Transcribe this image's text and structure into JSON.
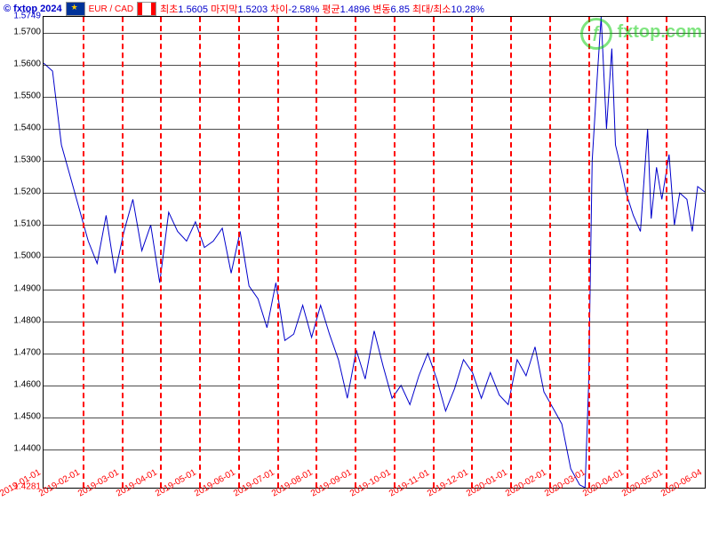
{
  "header": {
    "copyright": "© fxtop 2024",
    "pair": "EUR / CAD",
    "stats": [
      {
        "label": "최초",
        "value": "1.5605"
      },
      {
        "label": "마지막",
        "value": "1.5203"
      },
      {
        "label": "차이",
        "value": "-2.58%"
      },
      {
        "label": "평균",
        "value": "1.4896"
      },
      {
        "label": "변동",
        "value": "6.85"
      },
      {
        "label": "최대/최소",
        "value": "10.28%"
      }
    ],
    "watermark": "fxtop.com"
  },
  "chart": {
    "type": "line",
    "background_color": "#ffffff",
    "grid_color": "#000000",
    "vgrid_color": "#ff0000",
    "line_color": "#0000cc",
    "line_width": 1,
    "ymax": 1.5749,
    "ymin": 1.4281,
    "ymax_color": "#0000cc",
    "ymin_color": "#ff0000",
    "yticks": [
      "1.5700",
      "1.5600",
      "1.5500",
      "1.5400",
      "1.5300",
      "1.5200",
      "1.5100",
      "1.5000",
      "1.4900",
      "1.4800",
      "1.4700",
      "1.4600",
      "1.4500",
      "1.4400"
    ],
    "xticks": [
      "2019-01-01",
      "2019-02-01",
      "2019-03-01",
      "2019-04-01",
      "2019-05-01",
      "2019-06-01",
      "2019-07-01",
      "2019-08-01",
      "2019-09-01",
      "2019-10-01",
      "2019-11-01",
      "2019-12-01",
      "2020-01-01",
      "2020-02-01",
      "2020-03-01",
      "2020-04-01",
      "2020-05-01",
      "2020-06-04"
    ],
    "series": [
      [
        0,
        1.5605
      ],
      [
        0.5,
        1.558
      ],
      [
        1,
        1.535
      ],
      [
        1.5,
        1.525
      ],
      [
        2,
        1.515
      ],
      [
        2.5,
        1.505
      ],
      [
        3,
        1.498
      ],
      [
        3.5,
        1.513
      ],
      [
        4,
        1.495
      ],
      [
        4.5,
        1.508
      ],
      [
        5,
        1.518
      ],
      [
        5.5,
        1.502
      ],
      [
        6,
        1.51
      ],
      [
        6.5,
        1.492
      ],
      [
        7,
        1.514
      ],
      [
        7.5,
        1.508
      ],
      [
        8,
        1.505
      ],
      [
        8.5,
        1.511
      ],
      [
        9,
        1.503
      ],
      [
        9.5,
        1.505
      ],
      [
        10,
        1.509
      ],
      [
        10.5,
        1.495
      ],
      [
        11,
        1.508
      ],
      [
        11.5,
        1.491
      ],
      [
        12,
        1.487
      ],
      [
        12.5,
        1.478
      ],
      [
        13,
        1.492
      ],
      [
        13.5,
        1.474
      ],
      [
        14,
        1.476
      ],
      [
        14.5,
        1.485
      ],
      [
        15,
        1.475
      ],
      [
        15.5,
        1.485
      ],
      [
        16,
        1.476
      ],
      [
        16.5,
        1.468
      ],
      [
        17,
        1.456
      ],
      [
        17.5,
        1.471
      ],
      [
        18,
        1.462
      ],
      [
        18.5,
        1.477
      ],
      [
        19,
        1.466
      ],
      [
        19.5,
        1.456
      ],
      [
        20,
        1.46
      ],
      [
        20.5,
        1.454
      ],
      [
        21,
        1.463
      ],
      [
        21.5,
        1.47
      ],
      [
        22,
        1.462
      ],
      [
        22.5,
        1.452
      ],
      [
        23,
        1.459
      ],
      [
        23.5,
        1.468
      ],
      [
        24,
        1.464
      ],
      [
        24.5,
        1.456
      ],
      [
        25,
        1.464
      ],
      [
        25.5,
        1.457
      ],
      [
        26,
        1.454
      ],
      [
        26.5,
        1.468
      ],
      [
        27,
        1.463
      ],
      [
        27.5,
        1.472
      ],
      [
        28,
        1.458
      ],
      [
        28.5,
        1.453
      ],
      [
        29,
        1.448
      ],
      [
        29.5,
        1.434
      ],
      [
        30,
        1.429
      ],
      [
        30.3,
        1.4281
      ],
      [
        30.5,
        1.46
      ],
      [
        30.7,
        1.53
      ],
      [
        31,
        1.558
      ],
      [
        31.2,
        1.5749
      ],
      [
        31.5,
        1.54
      ],
      [
        31.8,
        1.565
      ],
      [
        32,
        1.535
      ],
      [
        32.3,
        1.528
      ],
      [
        32.6,
        1.52
      ],
      [
        33,
        1.513
      ],
      [
        33.4,
        1.508
      ],
      [
        33.8,
        1.54
      ],
      [
        34,
        1.512
      ],
      [
        34.3,
        1.528
      ],
      [
        34.6,
        1.518
      ],
      [
        35,
        1.532
      ],
      [
        35.3,
        1.51
      ],
      [
        35.6,
        1.52
      ],
      [
        36,
        1.518
      ],
      [
        36.3,
        1.508
      ],
      [
        36.6,
        1.522
      ],
      [
        37,
        1.5203
      ]
    ],
    "x_data_max": 37
  }
}
